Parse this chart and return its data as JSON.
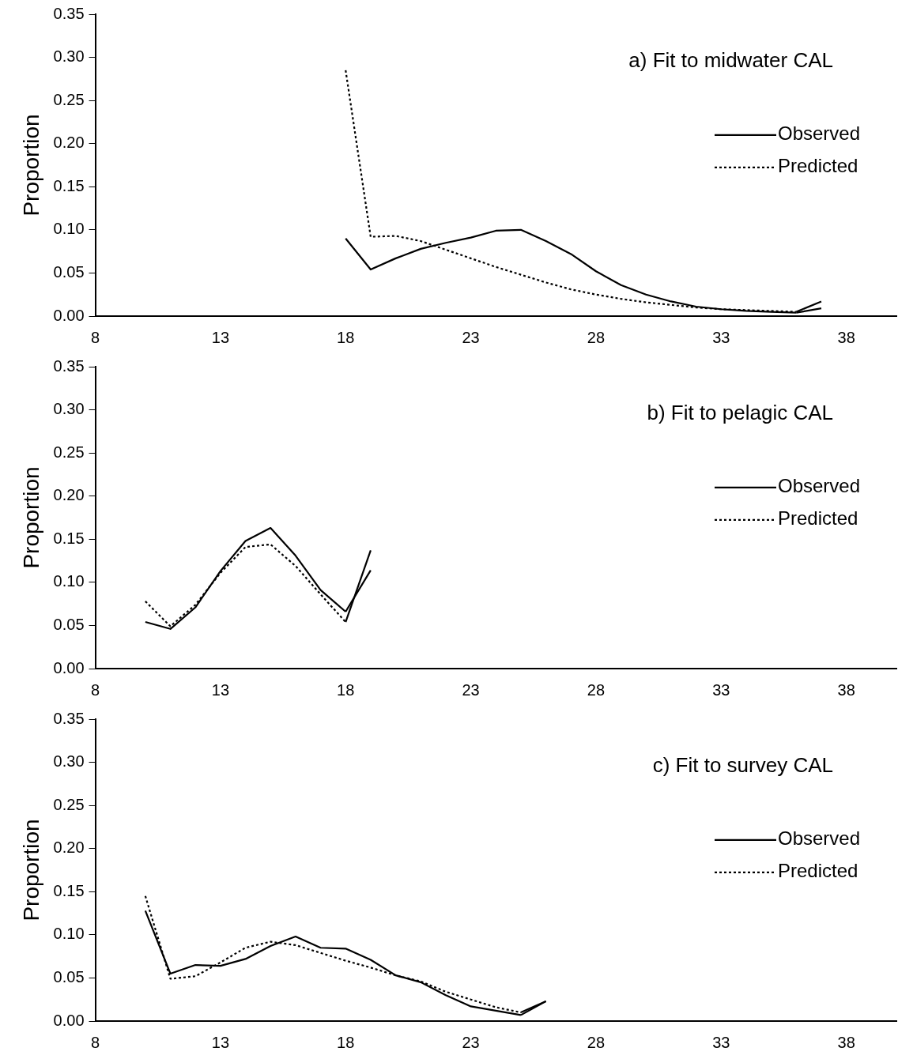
{
  "chart_data": [
    {
      "type": "line",
      "title": "a) Fit to midwater CAL",
      "ylabel": "Proportion",
      "xlim": [
        8,
        40
      ],
      "xticks": [
        8,
        13,
        18,
        23,
        28,
        33,
        38
      ],
      "ylim": [
        0,
        0.35
      ],
      "yticks": [
        {
          "value": 0,
          "label": "0.00"
        },
        {
          "value": 0.05,
          "label": "0.05"
        },
        {
          "value": 0.1,
          "label": "0.10"
        },
        {
          "value": 0.15,
          "label": "0.15"
        },
        {
          "value": 0.2,
          "label": "0.20"
        },
        {
          "value": 0.25,
          "label": "0.25"
        },
        {
          "value": 0.3,
          "label": "0.30"
        },
        {
          "value": 0.35,
          "label": "0.35"
        }
      ],
      "grid": false,
      "legend": "right",
      "marker": "none",
      "x": [
        18,
        19,
        20,
        21,
        22,
        23,
        24,
        25,
        26,
        27,
        28,
        29,
        30,
        31,
        32,
        33,
        34,
        35,
        36,
        37
      ],
      "series": [
        {
          "name": "Observed",
          "color": "#000000",
          "line_style": "solid",
          "values": [
            0.09,
            0.054,
            0.067,
            0.078,
            0.085,
            0.091,
            0.099,
            0.1,
            0.087,
            0.072,
            0.052,
            0.036,
            0.025,
            0.017,
            0.011,
            0.008,
            0.006,
            0.005,
            0.004,
            0.009
          ]
        },
        {
          "name": "Predicted",
          "color": "#000000",
          "line_style": "dotted",
          "values": [
            0.285,
            0.092,
            0.093,
            0.087,
            0.077,
            0.067,
            0.057,
            0.048,
            0.039,
            0.031,
            0.025,
            0.02,
            0.016,
            0.013,
            0.01,
            0.008,
            0.007,
            0.006,
            0.005,
            0.017
          ]
        }
      ]
    },
    {
      "type": "line",
      "title": "b) Fit to pelagic CAL",
      "ylabel": "Proportion",
      "xlim": [
        8,
        40
      ],
      "xticks": [
        8,
        13,
        18,
        23,
        28,
        33,
        38
      ],
      "ylim": [
        0,
        0.35
      ],
      "yticks": [
        {
          "value": 0,
          "label": "0.00"
        },
        {
          "value": 0.05,
          "label": "0.05"
        },
        {
          "value": 0.1,
          "label": "0.10"
        },
        {
          "value": 0.15,
          "label": "0.15"
        },
        {
          "value": 0.2,
          "label": "0.20"
        },
        {
          "value": 0.25,
          "label": "0.25"
        },
        {
          "value": 0.3,
          "label": "0.30"
        },
        {
          "value": 0.35,
          "label": "0.35"
        }
      ],
      "grid": false,
      "legend": "right",
      "marker": "none",
      "x": [
        10,
        11,
        12,
        13,
        14,
        15,
        16,
        17,
        18,
        19
      ],
      "series": [
        {
          "name": "Observed",
          "color": "#000000",
          "line_style": "solid",
          "values": [
            0.054,
            0.046,
            0.071,
            0.113,
            0.148,
            0.163,
            0.131,
            0.091,
            0.066,
            0.114
          ]
        },
        {
          "name": "Predicted",
          "color": "#000000",
          "line_style": "dotted",
          "values": [
            0.078,
            0.049,
            0.074,
            0.111,
            0.141,
            0.144,
            0.119,
            0.086,
            0.054,
            0.137
          ]
        }
      ]
    },
    {
      "type": "line",
      "title": "c) Fit to survey CAL",
      "ylabel": "Proportion",
      "xlim": [
        8,
        40
      ],
      "xticks": [
        8,
        13,
        18,
        23,
        28,
        33,
        38
      ],
      "ylim": [
        0,
        0.35
      ],
      "yticks": [
        {
          "value": 0,
          "label": "0.00"
        },
        {
          "value": 0.05,
          "label": "0.05"
        },
        {
          "value": 0.1,
          "label": "0.10"
        },
        {
          "value": 0.15,
          "label": "0.15"
        },
        {
          "value": 0.2,
          "label": "0.20"
        },
        {
          "value": 0.25,
          "label": "0.25"
        },
        {
          "value": 0.3,
          "label": "0.30"
        },
        {
          "value": 0.35,
          "label": "0.35"
        }
      ],
      "grid": false,
      "legend": "right",
      "marker": "none",
      "x": [
        10,
        11,
        12,
        13,
        14,
        15,
        16,
        17,
        18,
        19,
        20,
        21,
        22,
        23,
        24,
        25,
        26
      ],
      "series": [
        {
          "name": "Observed",
          "color": "#000000",
          "line_style": "solid",
          "values": [
            0.128,
            0.055,
            0.065,
            0.064,
            0.072,
            0.087,
            0.098,
            0.085,
            0.084,
            0.071,
            0.053,
            0.045,
            0.03,
            0.017,
            0.012,
            0.007,
            0.023
          ]
        },
        {
          "name": "Predicted",
          "color": "#000000",
          "line_style": "dotted",
          "values": [
            0.145,
            0.049,
            0.052,
            0.068,
            0.085,
            0.092,
            0.088,
            0.079,
            0.07,
            0.062,
            0.053,
            0.046,
            0.034,
            0.025,
            0.016,
            0.01,
            0.023
          ]
        }
      ]
    }
  ]
}
